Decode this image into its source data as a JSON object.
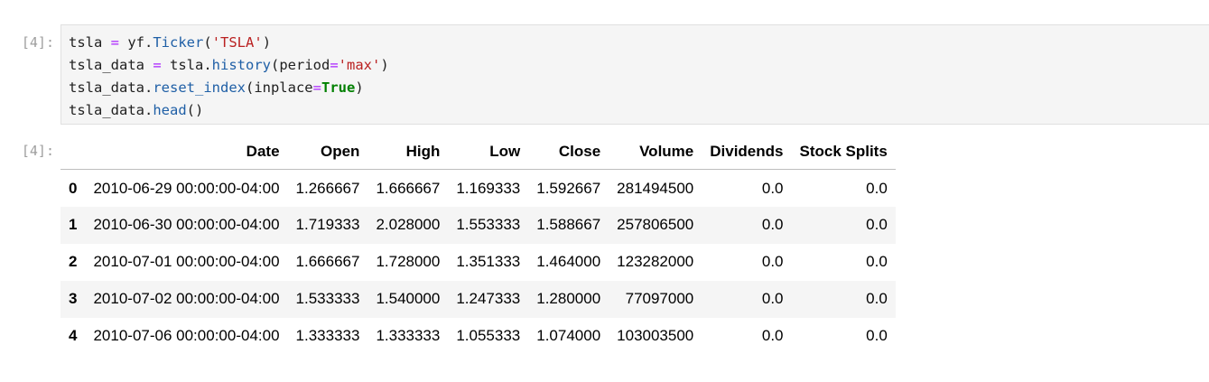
{
  "input_cell": {
    "prompt": "[4]:",
    "code_lines": [
      [
        {
          "t": "tsla ",
          "c": "plain"
        },
        {
          "t": "=",
          "c": "op"
        },
        {
          "t": " yf.",
          "c": "plain"
        },
        {
          "t": "Ticker",
          "c": "fn"
        },
        {
          "t": "(",
          "c": "plain"
        },
        {
          "t": "'TSLA'",
          "c": "str"
        },
        {
          "t": ")",
          "c": "plain"
        }
      ],
      [
        {
          "t": "tsla_data ",
          "c": "plain"
        },
        {
          "t": "=",
          "c": "op"
        },
        {
          "t": " tsla.",
          "c": "plain"
        },
        {
          "t": "history",
          "c": "fn"
        },
        {
          "t": "(period",
          "c": "plain"
        },
        {
          "t": "=",
          "c": "op"
        },
        {
          "t": "'max'",
          "c": "str"
        },
        {
          "t": ")",
          "c": "plain"
        }
      ],
      [
        {
          "t": "tsla_data.",
          "c": "plain"
        },
        {
          "t": "reset_index",
          "c": "fn"
        },
        {
          "t": "(inplace",
          "c": "plain"
        },
        {
          "t": "=",
          "c": "op"
        },
        {
          "t": "True",
          "c": "kw"
        },
        {
          "t": ")",
          "c": "plain"
        }
      ],
      [
        {
          "t": "tsla_data.",
          "c": "plain"
        },
        {
          "t": "head",
          "c": "fn"
        },
        {
          "t": "()",
          "c": "plain"
        }
      ]
    ]
  },
  "output_cell": {
    "prompt": "[4]:",
    "table": {
      "columns": [
        "",
        "Date",
        "Open",
        "High",
        "Low",
        "Close",
        "Volume",
        "Dividends",
        "Stock Splits"
      ],
      "rows": [
        [
          "0",
          "2010-06-29 00:00:00-04:00",
          "1.266667",
          "1.666667",
          "1.169333",
          "1.592667",
          "281494500",
          "0.0",
          "0.0"
        ],
        [
          "1",
          "2010-06-30 00:00:00-04:00",
          "1.719333",
          "2.028000",
          "1.553333",
          "1.588667",
          "257806500",
          "0.0",
          "0.0"
        ],
        [
          "2",
          "2010-07-01 00:00:00-04:00",
          "1.666667",
          "1.728000",
          "1.351333",
          "1.464000",
          "123282000",
          "0.0",
          "0.0"
        ],
        [
          "3",
          "2010-07-02 00:00:00-04:00",
          "1.533333",
          "1.540000",
          "1.247333",
          "1.280000",
          "77097000",
          "0.0",
          "0.0"
        ],
        [
          "4",
          "2010-07-06 00:00:00-04:00",
          "1.333333",
          "1.333333",
          "1.055333",
          "1.074000",
          "103003500",
          "0.0",
          "0.0"
        ]
      ]
    }
  }
}
